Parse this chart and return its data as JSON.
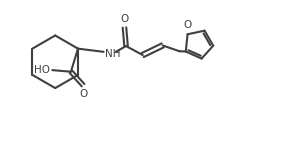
{
  "bg_color": "#ffffff",
  "line_color": "#404040",
  "line_width": 1.5,
  "font_size": 7.5,
  "fig_width": 3.06,
  "fig_height": 1.46,
  "dpi": 100,
  "xlim": [
    0,
    9.5
  ],
  "ylim": [
    0,
    4.5
  ]
}
